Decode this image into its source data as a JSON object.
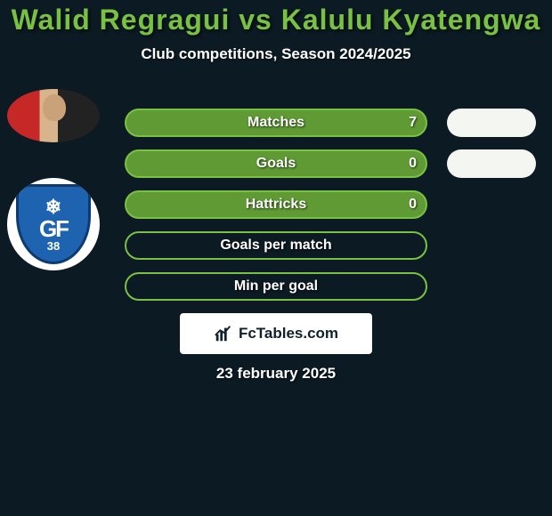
{
  "header": {
    "title": "Walid Regragui vs Kalulu Kyatengwa",
    "title_color": "#79c143",
    "title_fontsize": 32,
    "subtitle": "Club competitions, Season 2024/2025",
    "subtitle_color": "#ffffff",
    "subtitle_fontsize": 17
  },
  "background_color": "#0c1a24",
  "players": {
    "left": {
      "name": "Walid Regragui",
      "avatar_kind": "photo"
    },
    "right": {
      "name": "Kalulu Kyatengwa",
      "avatar_kind": "club-logo",
      "club_abbrev": "GF",
      "club_number": "38"
    }
  },
  "stats": {
    "bar_border_color": "#79c143",
    "bar_fill_color": "#5f9a34",
    "bar_track_color": "#0c1a24",
    "label_color": "#ffffff",
    "label_fontsize": 16,
    "right_pill_color": "#f4f6f2",
    "rows": [
      {
        "label": "Matches",
        "left_value": "7",
        "left_fill_pct": 100,
        "show_right_pill": true
      },
      {
        "label": "Goals",
        "left_value": "0",
        "left_fill_pct": 100,
        "show_right_pill": true
      },
      {
        "label": "Hattricks",
        "left_value": "0",
        "left_fill_pct": 100,
        "show_right_pill": false
      },
      {
        "label": "Goals per match",
        "left_value": "",
        "left_fill_pct": 0,
        "show_right_pill": false
      },
      {
        "label": "Min per goal",
        "left_value": "",
        "left_fill_pct": 0,
        "show_right_pill": false
      }
    ]
  },
  "brand": {
    "text": "FcTables.com",
    "box_bg": "#ffffff",
    "text_color": "#11212b",
    "fontsize": 17
  },
  "date": {
    "text": "23 february 2025",
    "color": "#ffffff",
    "fontsize": 17
  }
}
